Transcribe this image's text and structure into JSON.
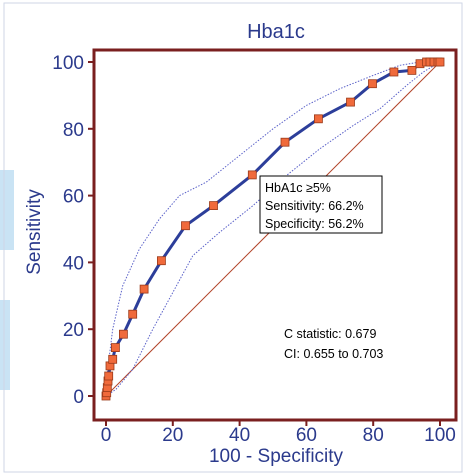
{
  "chart_data": {
    "type": "line",
    "title": "Hba1c",
    "xlabel": "100 - Specificity",
    "ylabel": "Sensitivity",
    "xlim": [
      0,
      100
    ],
    "ylim": [
      0,
      100
    ],
    "xticks": [
      0,
      20,
      40,
      60,
      80,
      100
    ],
    "yticks": [
      0,
      20,
      40,
      60,
      80,
      100
    ],
    "grid": false,
    "colors": {
      "frame": "#7a1f1f",
      "roc_line": "#2c3e9a",
      "marker_fill": "#f06a3b",
      "marker_edge": "#9a3a1a",
      "ci_line": "#5b62c9",
      "reference_line": "#b2452a",
      "axis_text": "#2b3a8c"
    },
    "series": [
      {
        "type": "roc",
        "x": [
          0,
          0.2,
          0.4,
          0.6,
          0.8,
          1.2,
          2.0,
          2.8,
          5.2,
          8.0,
          11.4,
          16.6,
          23.8,
          32.2,
          43.8,
          53.6,
          63.6,
          73.2,
          79.8,
          86.2,
          91.6,
          94.0,
          96.0,
          97.0,
          98.2,
          99.4,
          100
        ],
        "y": [
          0,
          1.0,
          2.5,
          4.5,
          6.0,
          9.0,
          11.0,
          14.5,
          18.5,
          24.5,
          32.0,
          40.5,
          51.0,
          57.0,
          66.2,
          76.0,
          83.0,
          88.0,
          93.5,
          97.0,
          97.5,
          99.5,
          100,
          100,
          100,
          100,
          100
        ]
      },
      {
        "type": "ci_upper",
        "x": [
          0,
          0.5,
          2,
          5,
          10,
          16,
          22,
          30,
          40,
          50,
          60,
          70,
          80,
          88,
          94,
          100
        ],
        "y": [
          0,
          8,
          20,
          33,
          44,
          53,
          60,
          64,
          72,
          80,
          87,
          92,
          96,
          99,
          100,
          100
        ]
      },
      {
        "type": "ci_lower",
        "x": [
          0,
          3,
          8,
          14,
          20,
          26,
          34,
          44,
          54,
          64,
          74,
          82,
          90,
          95,
          100
        ],
        "y": [
          0,
          2,
          8,
          20,
          31,
          42,
          49,
          57,
          66,
          74,
          81,
          86,
          93,
          97,
          100
        ]
      },
      {
        "type": "reference",
        "x": [
          0,
          100
        ],
        "y": [
          0,
          100
        ]
      }
    ],
    "annotations": {
      "cutoff_box": [
        "HbA1c ≥5%",
        "Sensitivity: 66.2%",
        "Specificity: 56.2%"
      ],
      "cutoff_point": {
        "x": 43.8,
        "y": 66.2
      },
      "stats": [
        "C statistic: 0.679",
        "CI: 0.655 to 0.703"
      ]
    }
  }
}
